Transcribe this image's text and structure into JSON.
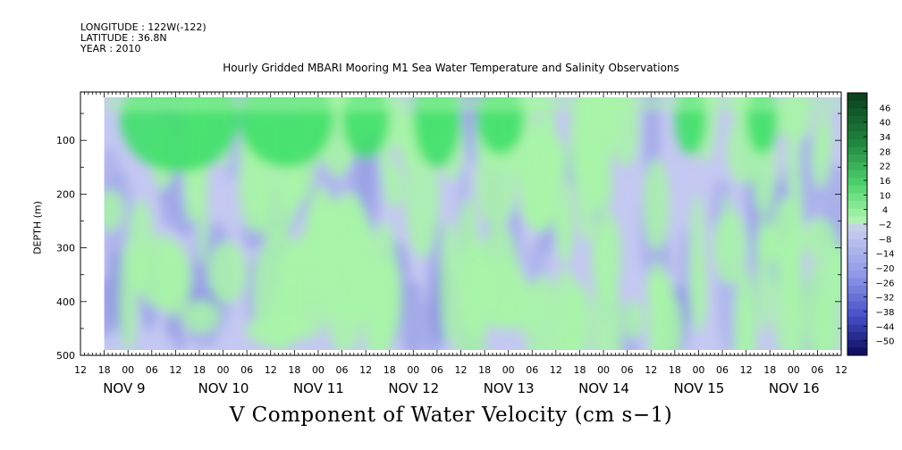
{
  "header": {
    "longitude": "LONGITUDE : 122W(-122)",
    "latitude": "LATITUDE : 36.8N",
    "year": "YEAR : 2010",
    "title": "Hourly Gridded MBARI Mooring M1 Sea Water Temperature and Salinity Observations"
  },
  "chart_data": {
    "type": "heatmap",
    "title": "Hourly Gridded MBARI Mooring M1 Sea Water Temperature and Salinity Observations",
    "xlabel": "V Component of Water Velocity (cm s−1)",
    "ylabel": "DEPTH (m)",
    "y_ticks": [
      "100",
      "200",
      "300",
      "400",
      "500"
    ],
    "ylim": [
      500,
      10
    ],
    "data_depth_range": [
      20,
      490
    ],
    "x_hour_labels": [
      "12",
      "18",
      "00",
      "06",
      "12",
      "18",
      "00",
      "06",
      "12",
      "18",
      "00",
      "06",
      "12",
      "18",
      "00",
      "06",
      "12",
      "18",
      "00",
      "06",
      "12",
      "18",
      "00",
      "06",
      "12",
      "18",
      "00",
      "06",
      "12",
      "18",
      "00",
      "06",
      "12"
    ],
    "x_day_labels": [
      "NOV  9",
      "NOV 10",
      "NOV 11",
      "NOV 12",
      "NOV 13",
      "NOV 14",
      "NOV 15",
      "NOV 16"
    ],
    "data_time_range_hours_from_nov8_12": [
      6,
      192
    ],
    "colorbar_labels": [
      "46",
      "40",
      "34",
      "28",
      "22",
      "16",
      "10",
      "4",
      "−2",
      "−8",
      "−14",
      "−20",
      "−26",
      "−32",
      "−38",
      "−44",
      "−50"
    ],
    "colorbar_range": [
      -50,
      50
    ],
    "colors": {
      "positive_light": "#a8f5a8",
      "positive_mid": "#3fe06a",
      "positive_dark": "#0a5a1e",
      "negative_light": "#c4c8f2",
      "negative_mid": "#9aa0e6",
      "negative_dark": "#0a0a60"
    },
    "green_bands_day_hours": [
      [
        6,
        22
      ],
      [
        20,
        34
      ],
      [
        30,
        40
      ],
      [
        42,
        56
      ],
      [
        44,
        60
      ],
      [
        58,
        62
      ],
      [
        60,
        70
      ],
      [
        64,
        78
      ],
      [
        66,
        80
      ],
      [
        70,
        82
      ],
      [
        82,
        94
      ],
      [
        92,
        102
      ],
      [
        98,
        110
      ],
      [
        106,
        118
      ],
      [
        112,
        122
      ],
      [
        118,
        124
      ],
      [
        122,
        132
      ],
      [
        126,
        134
      ],
      [
        132,
        140
      ],
      [
        144,
        150
      ],
      [
        148,
        158
      ],
      [
        162,
        170
      ],
      [
        168,
        174
      ],
      [
        174,
        182
      ],
      [
        180,
        188
      ],
      [
        186,
        192
      ]
    ]
  }
}
